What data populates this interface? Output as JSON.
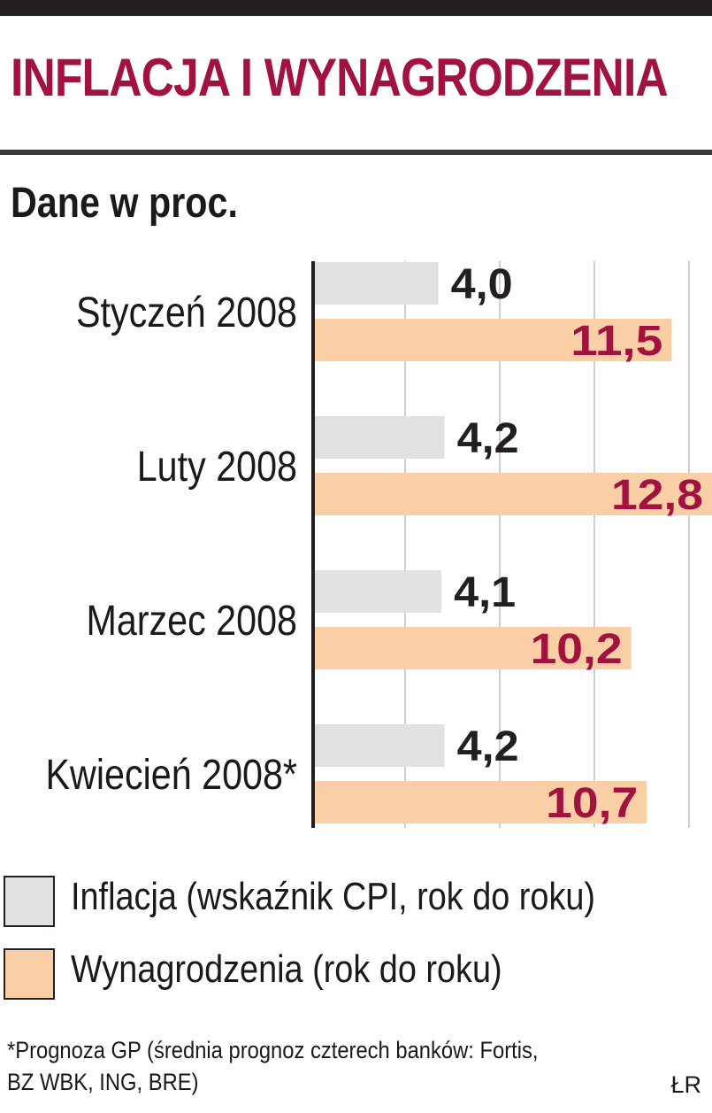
{
  "header": {
    "title": "INFLACJA I WYNAGRODZENIA",
    "subtitle": "Dane w proc."
  },
  "colors": {
    "title": "#a1123f",
    "inflation_bar": "#e1e1e1",
    "wages_bar": "#fbcfa6",
    "inflation_value_text": "#231f20",
    "wages_value_text": "#a1123f",
    "gridline": "#bfbfbf",
    "axis": "#231f20"
  },
  "chart_data": {
    "type": "bar",
    "orientation": "horizontal",
    "title": "INFLACJA I WYNAGRODZENIA",
    "subtitle": "Dane w proc.",
    "categories": [
      "Styczeń 2008",
      "Luty 2008",
      "Marzec 2008",
      "Kwiecień 2008*"
    ],
    "series": [
      {
        "name": "Inflacja (wskaźnik CPI, rok do roku)",
        "values": [
          4.0,
          4.2,
          4.1,
          4.2
        ],
        "labels": [
          "4,0",
          "4,2",
          "4,1",
          "4,2"
        ]
      },
      {
        "name": "Wynagrodzenia (rok do roku)",
        "values": [
          11.5,
          12.8,
          10.2,
          10.7
        ],
        "labels": [
          "11,5",
          "12,8",
          "10,2",
          "10,7"
        ]
      }
    ],
    "xlim": [
      0,
      12.8
    ],
    "grid": true,
    "legend_position": "bottom"
  },
  "legend": {
    "items": [
      {
        "label": "Inflacja (wskaźnik CPI, rok do roku)",
        "color": "#e1e1e1"
      },
      {
        "label": "Wynagrodzenia (rok do roku)",
        "color": "#fbcfa6"
      }
    ]
  },
  "footnote": {
    "line1": "*Prognoza GP (średnia prognoz czterech banków: Fortis,",
    "line2": "BZ WBK, ING, BRE)"
  },
  "source": "ŁR"
}
